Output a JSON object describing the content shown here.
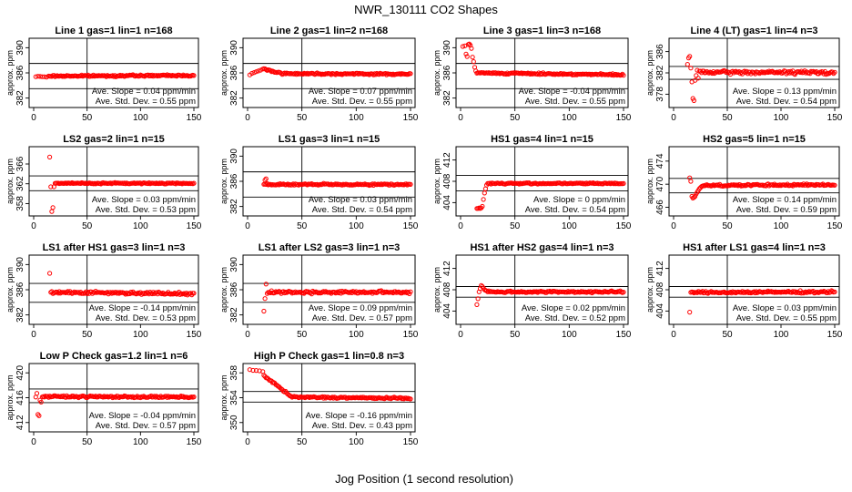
{
  "figure": {
    "title": "NWR_130111  CO2 Shapes",
    "xlabel": "Jog Position (1 second resolution)",
    "point_color": "#ff0000",
    "slope_prefix": "Ave. Slope = ",
    "slope_unit": "ppm/min",
    "sd_prefix": "Ave. Std. Dev. = ",
    "sd_unit": "ppm"
  },
  "chart_data": [
    {
      "type": "scatter",
      "title": "Line 1 gas=1 lin=1 n=168",
      "ylabel": "approx. ppm",
      "xlim": [
        0,
        150
      ],
      "xticks": [
        0,
        50,
        100,
        150
      ],
      "ylim": [
        380.5,
        391.5
      ],
      "yticks": [
        382,
        386,
        390
      ],
      "hlines": [
        387.5,
        383.5
      ],
      "vline": 50,
      "slope": "0.04",
      "sd": "0.55",
      "segments": [
        [
          2,
          14,
          385.4,
          385.4,
          0.15,
          2
        ],
        [
          15,
          150,
          385.5,
          385.6,
          0.18,
          1
        ]
      ],
      "extra": []
    },
    {
      "type": "scatter",
      "title": "Line 2 gas=1 lin=2 n=168",
      "ylabel": "approx. ppm",
      "xlim": [
        0,
        150
      ],
      "xticks": [
        0,
        50,
        100,
        150
      ],
      "ylim": [
        380.5,
        391.5
      ],
      "yticks": [
        382,
        386,
        390
      ],
      "hlines": [
        387.5,
        383.5
      ],
      "vline": 50,
      "slope": "0.07",
      "sd": "0.55",
      "segments": [
        [
          2,
          14,
          385.7,
          386.6,
          0.15,
          2
        ],
        [
          15,
          30,
          386.6,
          386.0,
          0.2,
          1
        ],
        [
          31,
          150,
          385.9,
          385.8,
          0.18,
          1
        ]
      ],
      "extra": []
    },
    {
      "type": "scatter",
      "title": "Line 3 gas=1 lin=3 n=168",
      "ylabel": "approx. ppm",
      "xlim": [
        0,
        150
      ],
      "xticks": [
        0,
        50,
        100,
        150
      ],
      "ylim": [
        380.5,
        391.5
      ],
      "yticks": [
        382,
        386,
        390
      ],
      "hlines": [
        387.5,
        383.5
      ],
      "vline": 50,
      "slope": "-0.04",
      "sd": "0.55",
      "segments": [
        [
          15,
          150,
          386.0,
          385.7,
          0.18,
          1
        ]
      ],
      "extra": [
        [
          2,
          390.2
        ],
        [
          4,
          390.3
        ],
        [
          5,
          389.0
        ],
        [
          6,
          388.6
        ],
        [
          7,
          390.5
        ],
        [
          8,
          390.6
        ],
        [
          9,
          390.4
        ],
        [
          10,
          389.9
        ],
        [
          11,
          388.5
        ],
        [
          12,
          387.8
        ],
        [
          13,
          386.9
        ],
        [
          14,
          386.3
        ]
      ]
    },
    {
      "type": "scatter",
      "title": "Line 4 (LT) gas=1 lin=4 n=3",
      "ylabel": "approx. ppm",
      "xlim": [
        0,
        150
      ],
      "xticks": [
        0,
        50,
        100,
        150
      ],
      "ylim": [
        375.5,
        388.5
      ],
      "yticks": [
        378,
        382,
        386
      ],
      "hlines": [
        383.2,
        380.8
      ],
      "vline": 50,
      "slope": "0.13",
      "sd": "0.54",
      "segments": [
        [
          25,
          150,
          382.1,
          382.1,
          0.45,
          1
        ]
      ],
      "extra": [
        [
          13,
          383.6
        ],
        [
          14,
          384.8
        ],
        [
          15,
          385.1
        ],
        [
          16,
          382.9
        ],
        [
          17,
          380.3
        ],
        [
          18,
          377.2
        ],
        [
          19,
          376.8
        ],
        [
          20,
          380.6
        ],
        [
          21,
          381.5
        ],
        [
          22,
          382.5
        ],
        [
          23,
          381.0
        ],
        [
          24,
          382.3
        ]
      ]
    },
    {
      "type": "scatter",
      "title": "LS2 gas=2 lin=1 n=15",
      "ylabel": "approx. ppm",
      "xlim": [
        0,
        150
      ],
      "xticks": [
        0,
        50,
        100,
        150
      ],
      "ylim": [
        355.5,
        369.5
      ],
      "yticks": [
        358,
        362,
        366
      ],
      "hlines": [
        363.6,
        360.6
      ],
      "vline": 50,
      "slope": "0.03",
      "sd": "0.53",
      "segments": [
        [
          20,
          150,
          362.1,
          362.1,
          0.18,
          1
        ]
      ],
      "extra": [
        [
          15,
          367.4
        ],
        [
          16,
          361.4
        ],
        [
          17,
          356.4
        ],
        [
          18,
          357.2
        ],
        [
          19,
          361.4
        ]
      ]
    },
    {
      "type": "scatter",
      "title": "LS1 gas=3 lin=1 n=15",
      "ylabel": "approx. ppm",
      "xlim": [
        0,
        150
      ],
      "xticks": [
        0,
        50,
        100,
        150
      ],
      "ylim": [
        380.5,
        391.5
      ],
      "yticks": [
        382,
        386,
        390
      ],
      "hlines": [
        387.5,
        383.5
      ],
      "vline": 50,
      "slope": "0.03",
      "sd": "0.54",
      "segments": [
        [
          15,
          150,
          385.5,
          385.5,
          0.2,
          1
        ]
      ],
      "extra": [
        [
          16,
          386.2
        ],
        [
          17,
          386.4
        ]
      ]
    },
    {
      "type": "scatter",
      "title": "HS1 gas=4 lin=1 n=15",
      "ylabel": "approx. ppm",
      "xlim": [
        0,
        150
      ],
      "xticks": [
        0,
        50,
        100,
        150
      ],
      "ylim": [
        401.5,
        414.5
      ],
      "yticks": [
        404,
        408,
        412
      ],
      "hlines": [
        409.1,
        406.2
      ],
      "vline": 50,
      "slope": "0",
      "sd": "0.54",
      "segments": [
        [
          25,
          150,
          407.6,
          407.6,
          0.18,
          1
        ]
      ],
      "extra": [
        [
          15,
          402.9
        ],
        [
          16,
          402.9
        ],
        [
          17,
          403.0
        ],
        [
          18,
          402.9
        ],
        [
          19,
          403.0
        ],
        [
          20,
          403.3
        ],
        [
          21,
          404.6
        ],
        [
          22,
          405.8
        ],
        [
          23,
          406.6
        ],
        [
          24,
          407.3
        ]
      ]
    },
    {
      "type": "scatter",
      "title": "HS2 gas=5 lin=1 n=15",
      "ylabel": "approx. ppm",
      "xlim": [
        0,
        150
      ],
      "xticks": [
        0,
        50,
        100,
        150
      ],
      "ylim": [
        464.5,
        476.5
      ],
      "yticks": [
        466,
        470,
        474
      ],
      "hlines": [
        471.0,
        468.5
      ],
      "vline": 50,
      "slope": "0.14",
      "sd": "0.59",
      "segments": [
        [
          28,
          150,
          469.8,
          469.9,
          0.25,
          1
        ]
      ],
      "extra": [
        [
          15,
          471.1
        ],
        [
          16,
          470.5
        ],
        [
          17,
          467.9
        ],
        [
          18,
          467.6
        ],
        [
          19,
          467.7
        ],
        [
          20,
          467.9
        ],
        [
          21,
          468.3
        ],
        [
          22,
          468.6
        ],
        [
          23,
          468.9
        ],
        [
          24,
          469.2
        ],
        [
          25,
          469.4
        ],
        [
          26,
          469.6
        ],
        [
          27,
          469.7
        ]
      ]
    },
    {
      "type": "scatter",
      "title": "LS1 after HS1 gas=3 lin=1 n=3",
      "ylabel": "approx. ppm",
      "xlim": [
        0,
        150
      ],
      "xticks": [
        0,
        50,
        100,
        150
      ],
      "ylim": [
        380.5,
        391.5
      ],
      "yticks": [
        382,
        386,
        390
      ],
      "hlines": [
        387.0,
        384.0
      ],
      "vline": 50,
      "slope": "-0.14",
      "sd": "0.53",
      "segments": [
        [
          16,
          150,
          385.6,
          385.4,
          0.3,
          1
        ]
      ],
      "extra": [
        [
          15,
          388.6
        ]
      ]
    },
    {
      "type": "scatter",
      "title": "LS1 after LS2 gas=3 lin=1 n=3",
      "ylabel": "approx. ppm",
      "xlim": [
        0,
        150
      ],
      "xticks": [
        0,
        50,
        100,
        150
      ],
      "ylim": [
        380.5,
        391.5
      ],
      "yticks": [
        382,
        386,
        390
      ],
      "hlines": [
        387.0,
        384.0
      ],
      "vline": 50,
      "slope": "0.09",
      "sd": "0.57",
      "segments": [
        [
          20,
          150,
          385.6,
          385.6,
          0.3,
          1
        ]
      ],
      "extra": [
        [
          15,
          382.6
        ],
        [
          16,
          384.6
        ],
        [
          17,
          386.9
        ],
        [
          18,
          385.4
        ],
        [
          19,
          385.6
        ]
      ]
    },
    {
      "type": "scatter",
      "title": "HS1 after HS2 gas=4 lin=1 n=3",
      "ylabel": "approx. ppm",
      "xlim": [
        0,
        150
      ],
      "xticks": [
        0,
        50,
        100,
        150
      ],
      "ylim": [
        401.5,
        414.5
      ],
      "yticks": [
        404,
        408,
        412
      ],
      "hlines": [
        408.6,
        406.6
      ],
      "vline": 50,
      "slope": "0.02",
      "sd": "0.52",
      "segments": [
        [
          30,
          150,
          407.6,
          407.6,
          0.25,
          1
        ]
      ],
      "extra": [
        [
          15,
          405.2
        ],
        [
          16,
          406.3
        ],
        [
          17,
          407.6
        ],
        [
          18,
          408.2
        ],
        [
          19,
          408.8
        ],
        [
          20,
          408.6
        ],
        [
          21,
          408.3
        ],
        [
          22,
          408.0
        ],
        [
          23,
          407.9
        ],
        [
          24,
          407.8
        ],
        [
          25,
          407.6
        ],
        [
          26,
          407.8
        ],
        [
          27,
          407.6
        ],
        [
          28,
          407.7
        ],
        [
          29,
          407.6
        ]
      ]
    },
    {
      "type": "scatter",
      "title": "HS1 after LS1 gas=4 lin=1 n=3",
      "ylabel": "approx. ppm",
      "xlim": [
        0,
        150
      ],
      "xticks": [
        0,
        50,
        100,
        150
      ],
      "ylim": [
        401.5,
        414.5
      ],
      "yticks": [
        404,
        408,
        412
      ],
      "hlines": [
        408.6,
        406.6
      ],
      "vline": 50,
      "slope": "0.03",
      "sd": "0.55",
      "segments": [
        [
          18,
          150,
          407.5,
          407.6,
          0.3,
          1
        ]
      ],
      "extra": [
        [
          15,
          403.8
        ],
        [
          16,
          407.5
        ],
        [
          17,
          407.6
        ]
      ]
    },
    {
      "type": "scatter",
      "title": "Low P Check gas=1.2 lin=1 n=6",
      "ylabel": "approx. ppm",
      "xlim": [
        0,
        150
      ],
      "xticks": [
        0,
        50,
        100,
        150
      ],
      "ylim": [
        410.5,
        421.5
      ],
      "yticks": [
        412,
        416,
        420
      ],
      "hlines": [
        417.4,
        415.2
      ],
      "vline": 50,
      "slope": "-0.04",
      "sd": "0.57",
      "segments": [
        [
          8,
          150,
          416.2,
          416.1,
          0.22,
          1
        ]
      ],
      "extra": [
        [
          2,
          416.1
        ],
        [
          3,
          416.7
        ],
        [
          4,
          413.3
        ],
        [
          5,
          413.1
        ],
        [
          6,
          415.6
        ],
        [
          7,
          415.3
        ]
      ]
    },
    {
      "type": "scatter",
      "title": "High P Check gas=1 lin=0.8 n=3",
      "ylabel": "approx. ppm",
      "xlim": [
        0,
        150
      ],
      "xticks": [
        0,
        50,
        100,
        150
      ],
      "ylim": [
        348.5,
        359.5
      ],
      "yticks": [
        350,
        354,
        358
      ],
      "hlines": [
        355.0,
        353.3
      ],
      "vline": 50,
      "slope": "-0.16",
      "sd": "0.43",
      "segments": [
        [
          2,
          14,
          358.5,
          358.2,
          0.1,
          3
        ],
        [
          15,
          40,
          357.6,
          354.2,
          0.25,
          1
        ],
        [
          41,
          150,
          354.1,
          353.9,
          0.2,
          1
        ]
      ],
      "extra": []
    }
  ]
}
